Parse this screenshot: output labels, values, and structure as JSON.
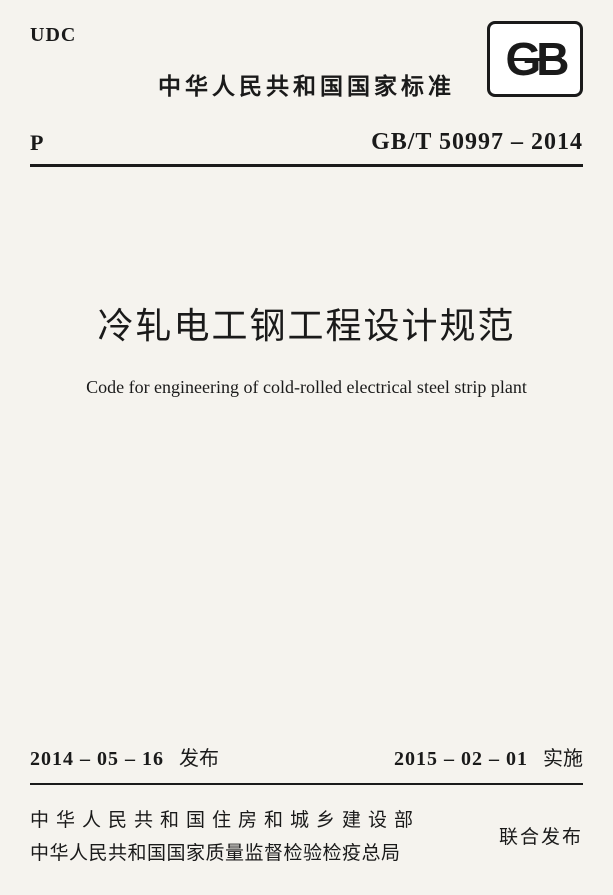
{
  "header": {
    "udc": "UDC",
    "country_standard": "中华人民共和国国家标准",
    "p_mark": "P",
    "code": "GB/T 50997 – 2014",
    "logo_text": "GB"
  },
  "title": {
    "zh": "冷轧电工钢工程设计规范",
    "en": "Code for engineering of cold-rolled electrical steel strip plant"
  },
  "dates": {
    "issue_date": "2014 – 05 – 16",
    "issue_label": "发布",
    "effective_date": "2015 – 02 – 01",
    "effective_label": "实施"
  },
  "publisher": {
    "org1": "中华人民共和国住房和城乡建设部",
    "org2": "中华人民共和国国家质量监督检验检疫总局",
    "joint": "联合发布"
  },
  "style": {
    "background": "#f5f3ee",
    "text_color": "#1a1a1a",
    "title_fontsize": 36,
    "en_fontsize": 18,
    "code_fontsize": 24
  }
}
